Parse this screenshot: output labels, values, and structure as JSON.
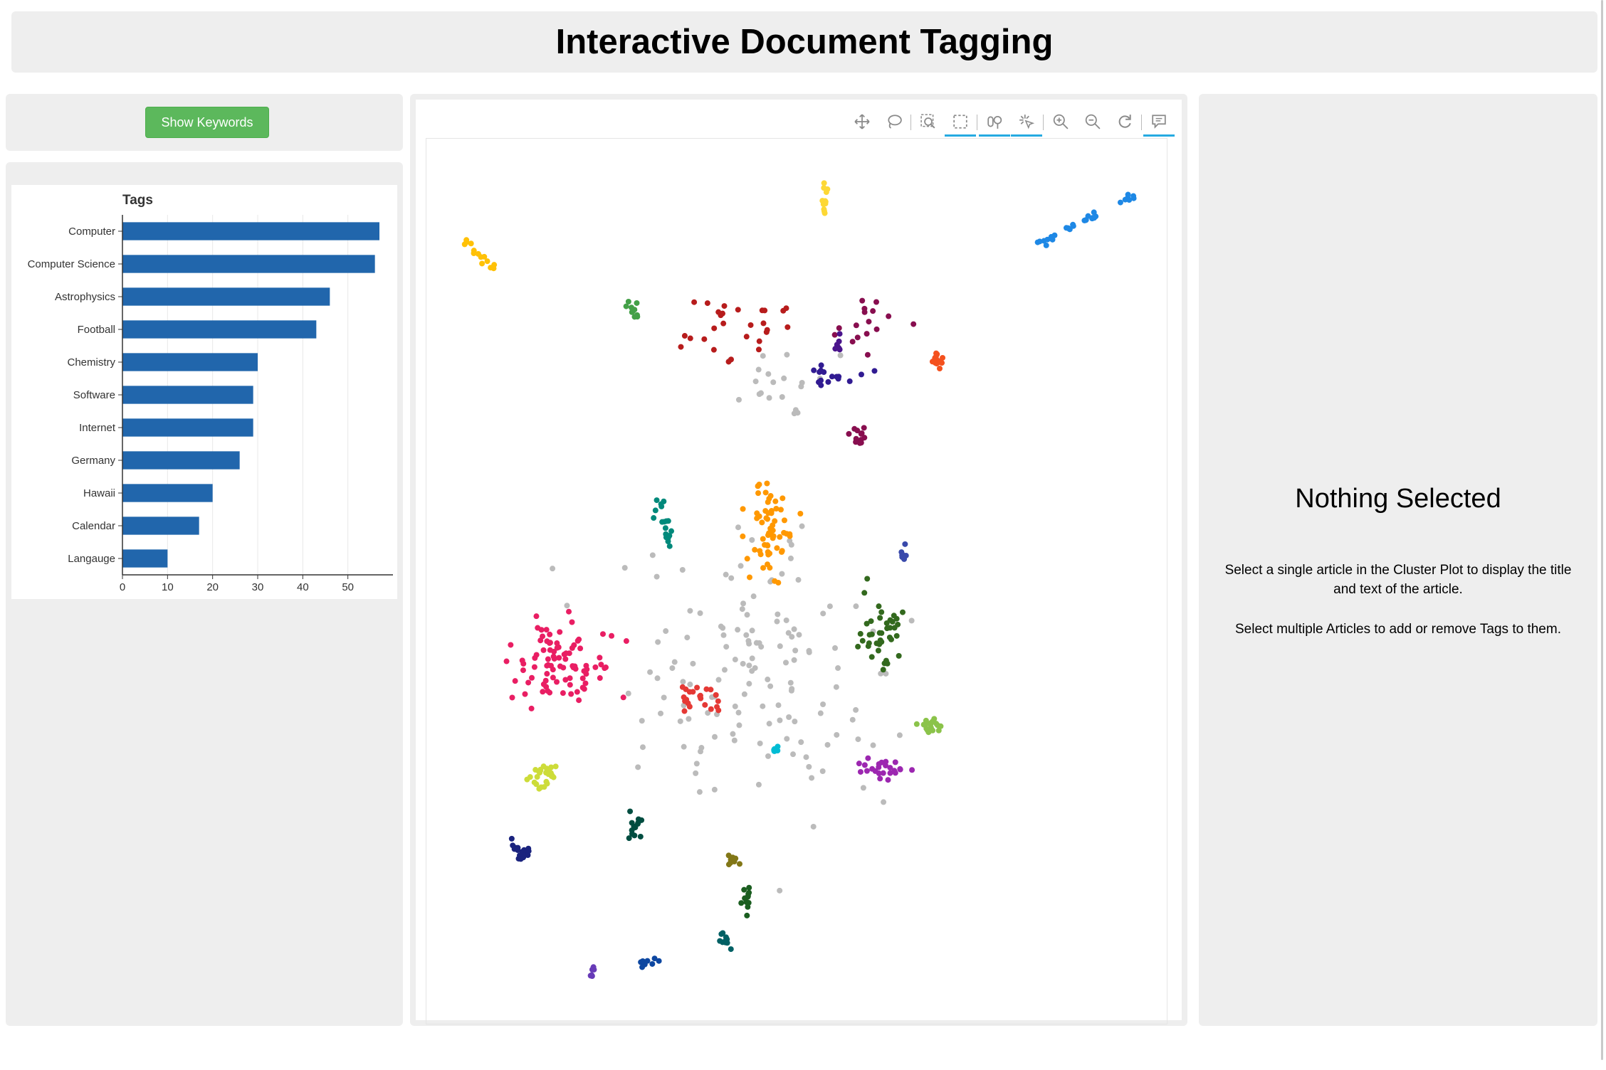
{
  "header": {
    "title": "Interactive Document Tagging"
  },
  "keywords_button": {
    "label": "Show Keywords"
  },
  "tags_chart": {
    "chart_data": {
      "type": "bar",
      "orientation": "horizontal",
      "title": "Tags",
      "categories": [
        "Computer",
        "Computer Science",
        "Astrophysics",
        "Football",
        "Chemistry",
        "Software",
        "Internet",
        "Germany",
        "Hawaii",
        "Calendar",
        "Langauge"
      ],
      "values": [
        57,
        56,
        46,
        43,
        30,
        29,
        29,
        26,
        20,
        17,
        10
      ],
      "xlim": [
        0,
        60
      ],
      "xticks": [
        0,
        10,
        20,
        30,
        40,
        50
      ],
      "grid": true,
      "color": "#2166ac"
    }
  },
  "cluster_plot": {
    "toolbar": {
      "tools": [
        {
          "name": "pan-tool-icon",
          "active": false
        },
        {
          "name": "lasso-select-icon",
          "active": false
        },
        {
          "name": "zoom-box-icon",
          "active": false
        },
        {
          "name": "box-select-icon",
          "active": true
        },
        {
          "name": "wheel-zoom-icon",
          "active": true
        },
        {
          "name": "tap-select-icon",
          "active": true
        },
        {
          "name": "zoom-in-icon",
          "active": false
        },
        {
          "name": "zoom-out-icon",
          "active": false
        },
        {
          "name": "reset-icon",
          "active": false
        },
        {
          "name": "hover-tooltip-icon",
          "active": true
        }
      ]
    },
    "chart_data": {
      "type": "scatter",
      "grid": false,
      "xlim": [
        0,
        1
      ],
      "ylim": [
        0,
        1
      ],
      "point_colors": {
        "unassigned": "#bbbbbb",
        "cluster_colors": [
          "#fdd835",
          "#1e88e5",
          "#ffc107",
          "#43a047",
          "#b71c1c",
          "#880e4f",
          "#4a148c",
          "#311b92",
          "#f4511e",
          "#ff9800",
          "#00897b",
          "#3949ab",
          "#e91e63",
          "#33691e",
          "#e53935",
          "#00bcd4",
          "#8bc34a",
          "#9c27b0",
          "#cddc39",
          "#004d40",
          "#1a237e",
          "#827717",
          "#1b5e20",
          "#006064",
          "#0d47a1",
          "#673ab7"
        ]
      },
      "clusters": [
        {
          "color": "#fdd835",
          "cx": 0.54,
          "cy": 0.05,
          "sx": 0.004,
          "sy": 0.015,
          "n": 12
        },
        {
          "color": "#1e88e5",
          "cx": 0.95,
          "cy": 0.06,
          "sx": 0.04,
          "sy": 0.022,
          "n": 30,
          "line": [
            0.83,
            0.11,
            0.98,
            0.045
          ]
        },
        {
          "color": "#ffc107",
          "cx": 0.06,
          "cy": 0.11,
          "sx": 0.02,
          "sy": 0.01,
          "n": 14,
          "line": [
            0.03,
            0.1,
            0.07,
            0.13
          ]
        },
        {
          "color": "#43a047",
          "cx": 0.27,
          "cy": 0.18,
          "sx": 0.01,
          "sy": 0.008,
          "n": 10
        },
        {
          "color": "#b71c1c",
          "cx": 0.42,
          "cy": 0.2,
          "sx": 0.06,
          "sy": 0.03,
          "n": 28
        },
        {
          "color": "#880e4f",
          "cx": 0.6,
          "cy": 0.2,
          "sx": 0.05,
          "sy": 0.03,
          "n": 16
        },
        {
          "color": "#880e4f",
          "cx": 0.59,
          "cy": 0.33,
          "sx": 0.012,
          "sy": 0.018,
          "n": 14
        },
        {
          "color": "#4a148c",
          "cx": 0.56,
          "cy": 0.22,
          "sx": 0.006,
          "sy": 0.01,
          "n": 7
        },
        {
          "color": "#311b92",
          "cx": 0.55,
          "cy": 0.26,
          "sx": 0.04,
          "sy": 0.01,
          "n": 16
        },
        {
          "color": "#f4511e",
          "cx": 0.7,
          "cy": 0.24,
          "sx": 0.006,
          "sy": 0.012,
          "n": 14
        },
        {
          "color": "#ff9800",
          "cx": 0.46,
          "cy": 0.44,
          "sx": 0.03,
          "sy": 0.05,
          "n": 60
        },
        {
          "color": "#00897b",
          "cx": 0.31,
          "cy": 0.43,
          "sx": 0.012,
          "sy": 0.025,
          "n": 18
        },
        {
          "color": "#3949ab",
          "cx": 0.65,
          "cy": 0.47,
          "sx": 0.004,
          "sy": 0.01,
          "n": 8
        },
        {
          "color": "#e91e63",
          "cx": 0.17,
          "cy": 0.6,
          "sx": 0.06,
          "sy": 0.04,
          "n": 90
        },
        {
          "color": "#33691e",
          "cx": 0.62,
          "cy": 0.56,
          "sx": 0.03,
          "sy": 0.04,
          "n": 40
        },
        {
          "color": "#e53935",
          "cx": 0.36,
          "cy": 0.64,
          "sx": 0.025,
          "sy": 0.015,
          "n": 22
        },
        {
          "color": "#00bcd4",
          "cx": 0.47,
          "cy": 0.7,
          "sx": 0.003,
          "sy": 0.006,
          "n": 8
        },
        {
          "color": "#8bc34a",
          "cx": 0.69,
          "cy": 0.67,
          "sx": 0.014,
          "sy": 0.01,
          "n": 18
        },
        {
          "color": "#9c27b0",
          "cx": 0.62,
          "cy": 0.72,
          "sx": 0.03,
          "sy": 0.008,
          "n": 24
        },
        {
          "color": "#cddc39",
          "cx": 0.14,
          "cy": 0.73,
          "sx": 0.018,
          "sy": 0.012,
          "n": 26
        },
        {
          "color": "#004d40",
          "cx": 0.27,
          "cy": 0.79,
          "sx": 0.01,
          "sy": 0.015,
          "n": 14
        },
        {
          "color": "#1a237e",
          "cx": 0.11,
          "cy": 0.82,
          "sx": 0.012,
          "sy": 0.01,
          "n": 20
        },
        {
          "color": "#827717",
          "cx": 0.41,
          "cy": 0.83,
          "sx": 0.007,
          "sy": 0.005,
          "n": 10
        },
        {
          "color": "#1b5e20",
          "cx": 0.43,
          "cy": 0.87,
          "sx": 0.006,
          "sy": 0.012,
          "n": 12
        },
        {
          "color": "#006064",
          "cx": 0.4,
          "cy": 0.92,
          "sx": 0.008,
          "sy": 0.008,
          "n": 10
        },
        {
          "color": "#0d47a1",
          "cx": 0.29,
          "cy": 0.95,
          "sx": 0.02,
          "sy": 0.005,
          "n": 8
        },
        {
          "color": "#673ab7",
          "cx": 0.21,
          "cy": 0.95,
          "sx": 0.004,
          "sy": 0.01,
          "n": 6
        },
        {
          "color": "#bbbbbb",
          "cx": 0.45,
          "cy": 0.62,
          "sx": 0.17,
          "sy": 0.14,
          "n": 140
        },
        {
          "color": "#bbbbbb",
          "cx": 0.47,
          "cy": 0.26,
          "sx": 0.06,
          "sy": 0.04,
          "n": 20
        }
      ]
    }
  },
  "detail": {
    "title": "Nothing Selected",
    "text1": "Select a single article in the Cluster Plot to display the title and text of the article.",
    "text2": "Select multiple Articles to add or remove Tags to them."
  }
}
